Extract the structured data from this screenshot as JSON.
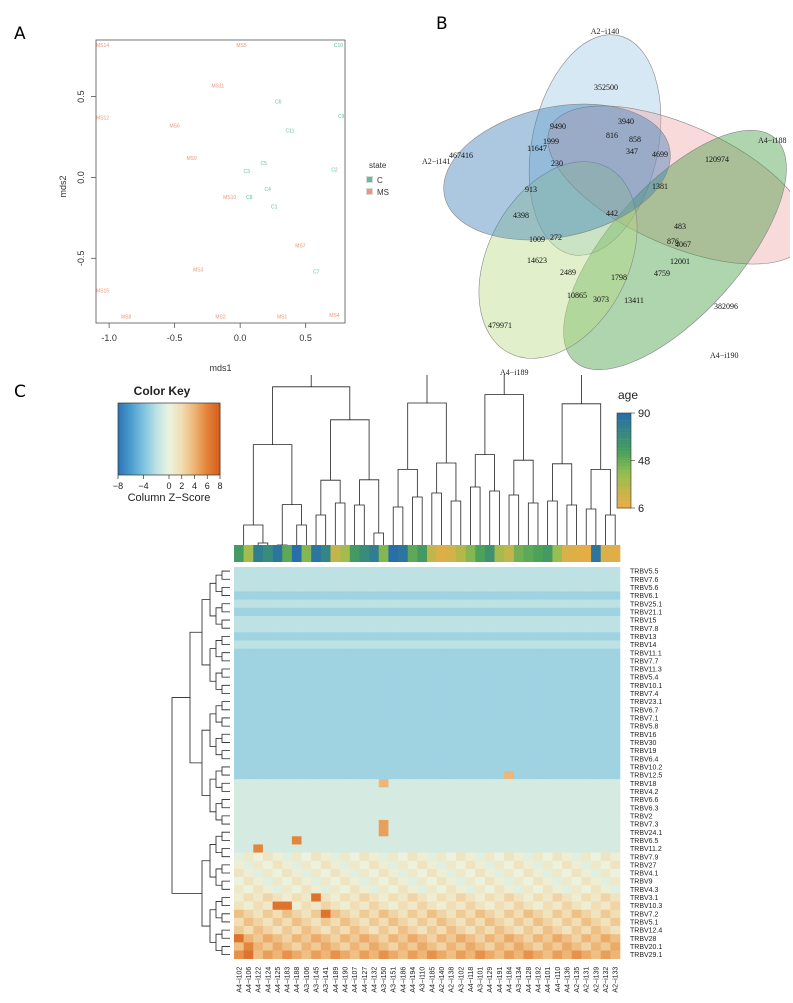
{
  "panels": {
    "a": "A",
    "b": "B",
    "c": "C"
  },
  "chart_data": [
    {
      "type": "scatter",
      "xlabel": "mds1",
      "ylabel": "mds2",
      "xlim": [
        -1.1,
        0.8
      ],
      "ylim": [
        -0.9,
        0.85
      ],
      "xticks": [
        "-1.0",
        "-0.5",
        "0.0",
        "0.5"
      ],
      "yticks": [
        "-0.5",
        "0.0",
        "0.5"
      ],
      "legend": {
        "title": "state",
        "position": "right",
        "entries": [
          {
            "label": "C",
            "color": "#5bbfa5"
          },
          {
            "label": "MS",
            "color": "#e9967a"
          }
        ]
      },
      "series": [
        {
          "name": "C",
          "color": "#5bbfa5",
          "points": [
            {
              "label": "C10",
              "x": 0.75,
              "y": 0.82
            },
            {
              "label": "C6",
              "x": 0.29,
              "y": 0.47
            },
            {
              "label": "C11",
              "x": 0.38,
              "y": 0.29
            },
            {
              "label": "C9",
              "x": 0.77,
              "y": 0.38
            },
            {
              "label": "C3",
              "x": 0.05,
              "y": 0.04
            },
            {
              "label": "C5",
              "x": 0.18,
              "y": 0.09
            },
            {
              "label": "C2",
              "x": 0.72,
              "y": 0.05
            },
            {
              "label": "C4",
              "x": 0.21,
              "y": -0.07
            },
            {
              "label": "C8",
              "x": 0.07,
              "y": -0.12
            },
            {
              "label": "C1",
              "x": 0.26,
              "y": -0.18
            },
            {
              "label": "C7",
              "x": 0.58,
              "y": -0.58
            }
          ]
        },
        {
          "name": "MS",
          "color": "#e9967a",
          "points": [
            {
              "label": "MS14",
              "x": -1.05,
              "y": 0.82
            },
            {
              "label": "MS5",
              "x": 0.01,
              "y": 0.82
            },
            {
              "label": "MS11",
              "x": -0.17,
              "y": 0.57
            },
            {
              "label": "MS12",
              "x": -1.05,
              "y": 0.37
            },
            {
              "label": "MS6",
              "x": -0.5,
              "y": 0.32
            },
            {
              "label": "MS9",
              "x": -0.37,
              "y": 0.12
            },
            {
              "label": "MS10",
              "x": -0.08,
              "y": -0.12
            },
            {
              "label": "MS7",
              "x": 0.46,
              "y": -0.42
            },
            {
              "label": "MS3",
              "x": -0.32,
              "y": -0.57
            },
            {
              "label": "MS15",
              "x": -1.05,
              "y": -0.7
            },
            {
              "label": "MS8",
              "x": -0.87,
              "y": -0.86
            },
            {
              "label": "MS2",
              "x": -0.15,
              "y": -0.86
            },
            {
              "label": "MS1",
              "x": 0.32,
              "y": -0.86
            },
            {
              "label": "MS4",
              "x": 0.72,
              "y": -0.85
            }
          ]
        }
      ]
    },
    {
      "type": "venn",
      "sets": [
        {
          "name": "A2−i140",
          "color": "#9ec8e3"
        },
        {
          "name": "A4−i188",
          "color": "#f0a8a8"
        },
        {
          "name": "A4−i190",
          "color": "#3f9a3f"
        },
        {
          "name": "A4−i189",
          "color": "#b8dc84"
        },
        {
          "name": "A2−i141",
          "color": "#3a7db8"
        }
      ],
      "regions": [
        "352500",
        "120974",
        "382096",
        "479971",
        "467416",
        "9490",
        "3940",
        "816",
        "858",
        "11647",
        "1999",
        "230",
        "347",
        "4699",
        "1381",
        "913",
        "442",
        "4067",
        "4398",
        "483",
        "876",
        "1009",
        "272",
        "12001",
        "14623",
        "2489",
        "1798",
        "4759",
        "10865",
        "3073",
        "13411"
      ]
    },
    {
      "type": "heatmap",
      "color_key": {
        "title": "Color Key",
        "label": "Column Z−Score",
        "ticks": [
          "−8",
          "−4",
          "0",
          "2",
          "4",
          "6",
          "8"
        ]
      },
      "age_key": {
        "title": "age",
        "ticks": [
          "90",
          "48",
          "6"
        ],
        "min": 6,
        "max": 90
      },
      "columns": [
        "A4−i102",
        "A4−i106",
        "A4−i122",
        "A4−i124",
        "A4−i125",
        "A4−i183",
        "A4−i188",
        "A3−i106",
        "A3−i145",
        "A3−i141",
        "A4−i189",
        "A4−i190",
        "A4−i107",
        "A4−i127",
        "A4−i132",
        "A3−i150",
        "A3−i151",
        "A4−i186",
        "A4−i194",
        "A3−i110",
        "A4−i185",
        "A2−i140",
        "A2−i138",
        "A3−i102",
        "A4−i118",
        "A3−i101",
        "A4−i129",
        "A4−i191",
        "A4−i184",
        "A3−i134",
        "A4−i128",
        "A4−i192",
        "A4−i101",
        "A4−i110",
        "A4−i136",
        "A2−i135",
        "A2−i131",
        "A2−i139",
        "A2−i132",
        "A2−i133"
      ],
      "rows": [
        "TRBV5.5",
        "TRBV7.6",
        "TRBV5.6",
        "TRBV6.1",
        "TRBV25.1",
        "TRBV21.1",
        "TRBV15",
        "TRBV7.8",
        "TRBV13",
        "TRBV14",
        "TRBV11.1",
        "TRBV7.7",
        "TRBV11.3",
        "TRBV5.4",
        "TRBV10.1",
        "TRBV7.4",
        "TRBV23.1",
        "TRBV6.7",
        "TRBV7.1",
        "TRBV5.8",
        "TRBV16",
        "TRBV30",
        "TRBV19",
        "TRBV6.4",
        "TRBV10.2",
        "TRBV12.5",
        "TRBV18",
        "TRBV4.2",
        "TRBV6.6",
        "TRBV6.3",
        "TRBV2",
        "TRBV7.3",
        "TRBV24.1",
        "TRBV6.5",
        "TRBV11.2",
        "TRBV7.9",
        "TRBV27",
        "TRBV4.1",
        "TRBV9",
        "TRBV4.3",
        "TRBV3.1",
        "TRBV10.3",
        "TRBV7.2",
        "TRBV5.1",
        "TRBV12.4",
        "TRBV28",
        "TRBV20.1",
        "TRBV29.1"
      ],
      "row_base_z": [
        -2,
        -2,
        -2,
        -3,
        -2,
        -3,
        -2,
        -2,
        -3,
        -2,
        -3,
        -3,
        -3,
        -3,
        -3,
        -3,
        -3,
        -3,
        -3,
        -3,
        -3,
        -3,
        -3,
        -3,
        -3,
        -3,
        -1,
        -1,
        -1,
        -1,
        -1,
        -1,
        -1,
        -1,
        -1,
        0,
        0,
        0,
        0,
        0,
        1,
        1,
        2,
        2,
        2,
        3,
        3,
        4
      ],
      "highlights": [
        {
          "row": "TRBV18",
          "col": "A3−i150",
          "z": 4
        },
        {
          "row": "TRBV12.5",
          "col": "A4−i184",
          "z": 4
        },
        {
          "row": "TRBV7.3",
          "col": "A3−i150",
          "z": 5
        },
        {
          "row": "TRBV24.1",
          "col": "A3−i150",
          "z": 5
        },
        {
          "row": "TRBV6.5",
          "col": "A4−i188",
          "z": 6
        },
        {
          "row": "TRBV11.2",
          "col": "A4−i122",
          "z": 6
        },
        {
          "row": "TRBV10.3",
          "col": "A4−i125",
          "z": 7
        },
        {
          "row": "TRBV10.3",
          "col": "A4−i183",
          "z": 7
        },
        {
          "row": "TRBV3.1",
          "col": "A3−i145",
          "z": 7
        },
        {
          "row": "TRBV7.2",
          "col": "A3−i141",
          "z": 7
        },
        {
          "row": "TRBV28",
          "col": "A4−i102",
          "z": 7
        },
        {
          "row": "TRBV20.1",
          "col": "A4−i106",
          "z": 6
        },
        {
          "row": "TRBV29.1",
          "col": "A4−i106",
          "z": 7
        }
      ],
      "ages": [
        60,
        30,
        80,
        70,
        85,
        50,
        90,
        40,
        85,
        75,
        20,
        30,
        60,
        70,
        80,
        40,
        90,
        85,
        50,
        60,
        20,
        10,
        15,
        25,
        40,
        55,
        65,
        30,
        20,
        45,
        50,
        55,
        60,
        35,
        12,
        10,
        8,
        85,
        12,
        10
      ]
    }
  ]
}
